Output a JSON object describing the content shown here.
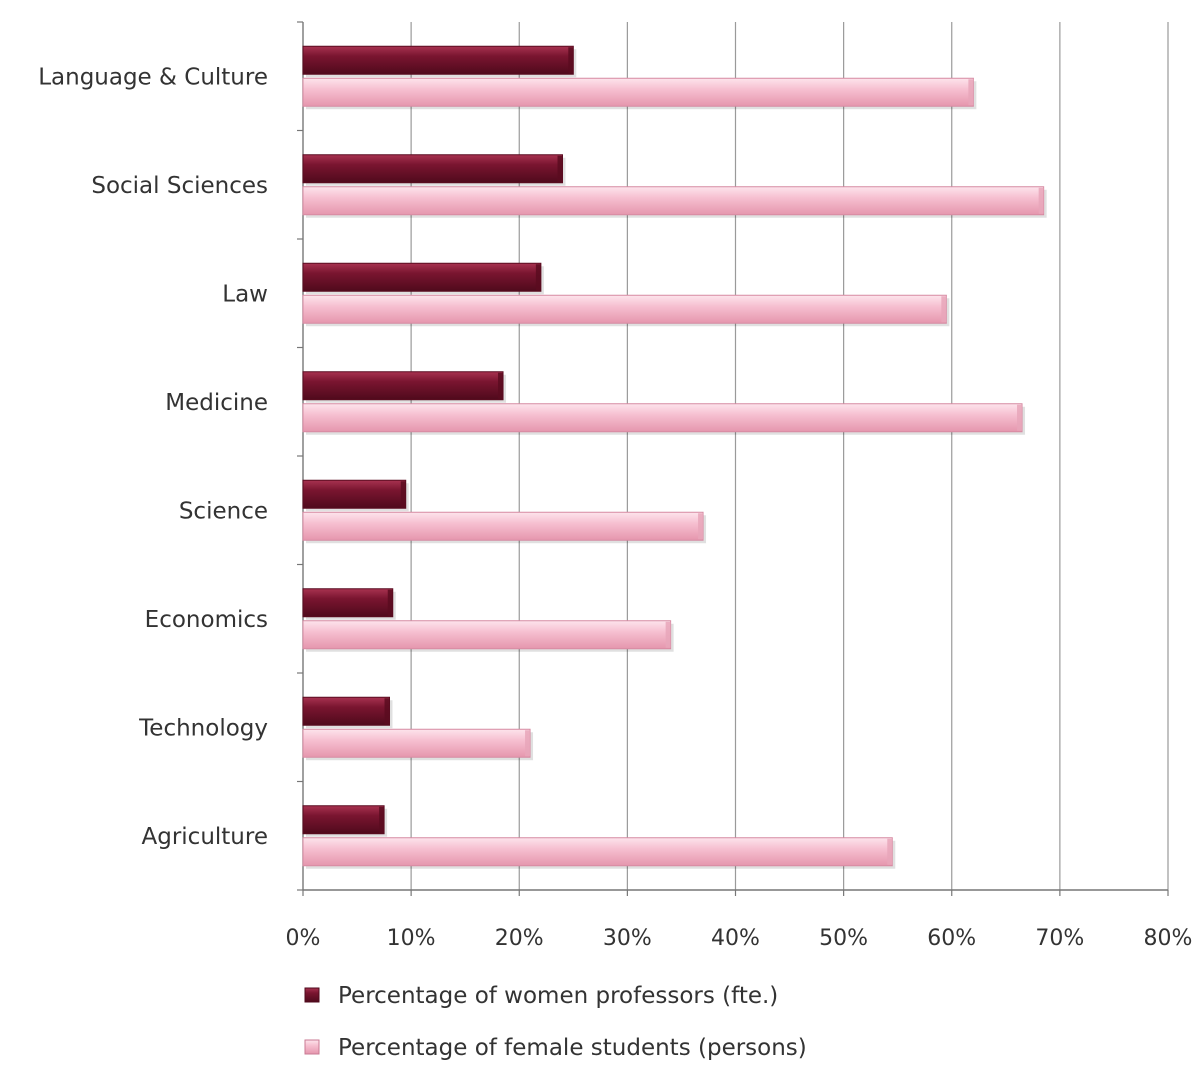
{
  "chart_data": {
    "type": "bar",
    "orientation": "horizontal",
    "categories": [
      "Language & Culture",
      "Social Sciences",
      "Law",
      "Medicine",
      "Science",
      "Economics",
      "Technology",
      "Agriculture"
    ],
    "series": [
      {
        "name": "Percentage of women professors (fte.)",
        "color": "#7a1530",
        "values": [
          25,
          24,
          22,
          18.5,
          9.5,
          8.3,
          8,
          7.5
        ]
      },
      {
        "name": "Percentage of female students (persons)",
        "color": "#f4b6c9",
        "values": [
          62,
          68.5,
          59.5,
          66.5,
          37,
          34,
          21,
          54.5
        ]
      }
    ],
    "xlim": [
      0,
      80
    ],
    "xticks": [
      0,
      10,
      20,
      30,
      40,
      50,
      60,
      70,
      80
    ],
    "xtick_labels": [
      "0%",
      "10%",
      "20%",
      "30%",
      "40%",
      "50%",
      "60%",
      "70%",
      "80%"
    ],
    "grid": "vertical",
    "legend_position": "bottom",
    "title": "",
    "xlabel": "",
    "ylabel": ""
  }
}
